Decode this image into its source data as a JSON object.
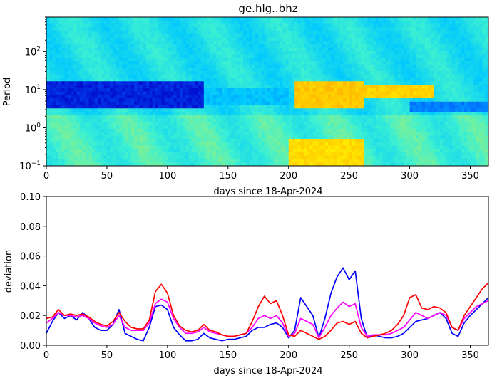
{
  "chart_data": [
    {
      "type": "heatmap",
      "title": "ge.hlg..bhz",
      "xlabel": "days since 18-Apr-2024",
      "ylabel": "Period",
      "xlim": [
        0,
        365
      ],
      "ylim": [
        0.1,
        800
      ],
      "yscale": "log",
      "x_ticks": [
        0,
        50,
        100,
        150,
        200,
        250,
        300,
        350
      ],
      "y_ticks": [
        {
          "value": 0.1,
          "base": "10",
          "exp": "−1"
        },
        {
          "value": 1,
          "base": "10",
          "exp": "0"
        },
        {
          "value": 10,
          "base": "10",
          "exp": "1"
        },
        {
          "value": 100,
          "base": "10",
          "exp": "2"
        }
      ],
      "colormap": [
        "#0000c8",
        "#0064ff",
        "#00c8ff",
        "#3cf0d2",
        "#b4f064",
        "#ffff00",
        "#ffb400",
        "#ff6400"
      ],
      "features": [
        {
          "x0": 0,
          "x1": 130,
          "y0": 3,
          "y1": 18,
          "level": 0.05,
          "note": "deep blue band"
        },
        {
          "x0": 130,
          "x1": 200,
          "y0": 4,
          "y1": 12,
          "level": 0.28
        },
        {
          "x0": 200,
          "x1": 262,
          "y0": 0.1,
          "y1": 0.5,
          "level": 0.78
        },
        {
          "x0": 205,
          "x1": 262,
          "y0": 3,
          "y1": 15,
          "level": 0.82
        },
        {
          "x0": 262,
          "x1": 320,
          "y0": 6,
          "y1": 14,
          "level": 0.8
        },
        {
          "x0": 300,
          "x1": 365,
          "y0": 2.5,
          "y1": 5,
          "level": 0.18
        }
      ]
    },
    {
      "type": "line",
      "xlabel": "days since 18-Apr-2024",
      "ylabel": "deviation",
      "xlim": [
        0,
        365
      ],
      "ylim": [
        0,
        0.1
      ],
      "x_ticks": [
        0,
        50,
        100,
        150,
        200,
        250,
        300,
        350
      ],
      "y_ticks": [
        0.0,
        0.02,
        0.04,
        0.06,
        0.08,
        0.1
      ],
      "y_tick_labels": [
        "0.00",
        "0.02",
        "0.04",
        "0.06",
        "0.08",
        "0.10"
      ],
      "x": [
        0,
        5,
        10,
        15,
        20,
        25,
        30,
        35,
        40,
        45,
        50,
        55,
        60,
        65,
        70,
        75,
        80,
        85,
        90,
        95,
        100,
        105,
        110,
        115,
        120,
        125,
        130,
        135,
        140,
        145,
        150,
        155,
        160,
        165,
        170,
        175,
        180,
        185,
        190,
        195,
        200,
        205,
        210,
        215,
        220,
        225,
        230,
        235,
        240,
        245,
        250,
        255,
        260,
        265,
        270,
        275,
        280,
        285,
        290,
        295,
        300,
        305,
        310,
        315,
        320,
        325,
        330,
        335,
        340,
        345,
        350,
        355,
        360,
        365
      ],
      "series": [
        {
          "color": "#0000ff",
          "values": [
            0.008,
            0.016,
            0.022,
            0.018,
            0.02,
            0.017,
            0.022,
            0.018,
            0.012,
            0.01,
            0.01,
            0.014,
            0.024,
            0.008,
            0.006,
            0.004,
            0.003,
            0.012,
            0.026,
            0.027,
            0.024,
            0.012,
            0.007,
            0.003,
            0.003,
            0.004,
            0.008,
            0.005,
            0.004,
            0.003,
            0.004,
            0.004,
            0.005,
            0.006,
            0.01,
            0.012,
            0.012,
            0.014,
            0.015,
            0.012,
            0.005,
            0.01,
            0.032,
            0.026,
            0.02,
            0.005,
            0.018,
            0.035,
            0.046,
            0.052,
            0.044,
            0.05,
            0.018,
            0.005,
            0.007,
            0.006,
            0.005,
            0.005,
            0.006,
            0.008,
            0.012,
            0.016,
            0.017,
            0.018,
            0.02,
            0.022,
            0.018,
            0.008,
            0.006,
            0.015,
            0.02,
            0.024,
            0.028,
            0.032
          ]
        },
        {
          "color": "#ff00ff",
          "values": [
            0.015,
            0.018,
            0.022,
            0.02,
            0.02,
            0.019,
            0.02,
            0.018,
            0.015,
            0.013,
            0.012,
            0.014,
            0.02,
            0.012,
            0.01,
            0.01,
            0.01,
            0.015,
            0.028,
            0.031,
            0.029,
            0.018,
            0.012,
            0.008,
            0.008,
            0.009,
            0.012,
            0.009,
            0.008,
            0.007,
            0.006,
            0.006,
            0.007,
            0.008,
            0.012,
            0.018,
            0.02,
            0.018,
            0.02,
            0.015,
            0.006,
            0.008,
            0.018,
            0.016,
            0.014,
            0.005,
            0.012,
            0.02,
            0.025,
            0.029,
            0.026,
            0.028,
            0.012,
            0.006,
            0.007,
            0.007,
            0.007,
            0.008,
            0.01,
            0.012,
            0.017,
            0.022,
            0.02,
            0.018,
            0.02,
            0.022,
            0.02,
            0.012,
            0.01,
            0.018,
            0.022,
            0.026,
            0.028,
            0.03
          ]
        },
        {
          "color": "#ff0000",
          "values": [
            0.018,
            0.019,
            0.024,
            0.02,
            0.021,
            0.02,
            0.021,
            0.019,
            0.016,
            0.014,
            0.013,
            0.016,
            0.022,
            0.016,
            0.012,
            0.011,
            0.011,
            0.017,
            0.036,
            0.041,
            0.035,
            0.02,
            0.013,
            0.01,
            0.009,
            0.01,
            0.014,
            0.01,
            0.009,
            0.007,
            0.006,
            0.006,
            0.007,
            0.008,
            0.016,
            0.026,
            0.033,
            0.028,
            0.03,
            0.02,
            0.007,
            0.006,
            0.01,
            0.008,
            0.006,
            0.004,
            0.006,
            0.01,
            0.015,
            0.016,
            0.014,
            0.016,
            0.008,
            0.005,
            0.006,
            0.007,
            0.008,
            0.01,
            0.014,
            0.02,
            0.032,
            0.034,
            0.025,
            0.024,
            0.026,
            0.025,
            0.022,
            0.012,
            0.01,
            0.02,
            0.026,
            0.032,
            0.038,
            0.042
          ]
        }
      ]
    }
  ]
}
